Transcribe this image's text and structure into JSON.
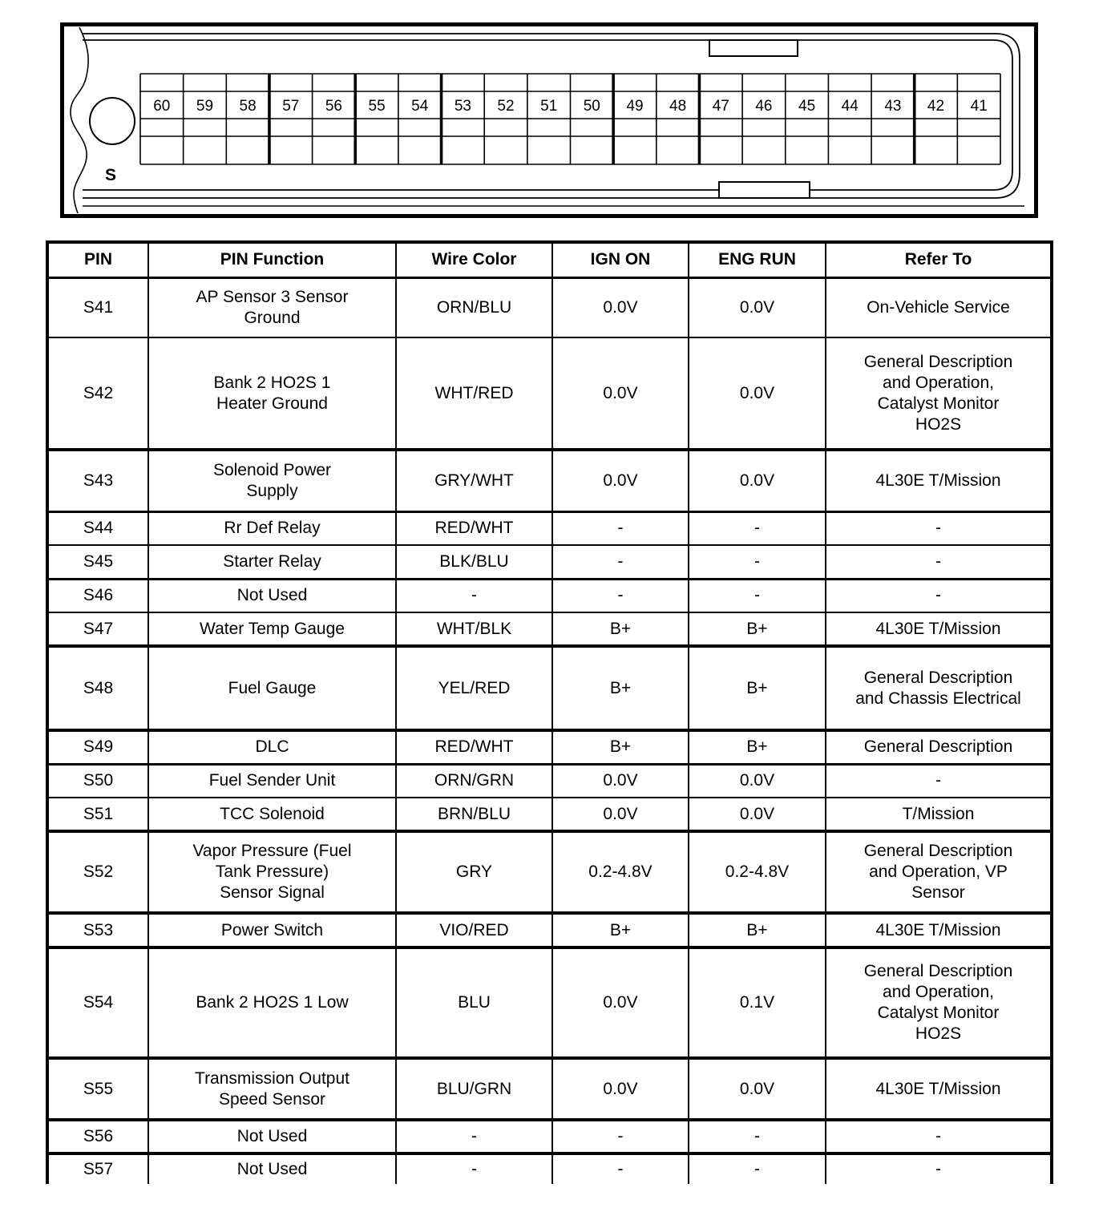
{
  "connector": {
    "label": "S",
    "pins": [
      "60",
      "59",
      "58",
      "57",
      "56",
      "55",
      "54",
      "53",
      "52",
      "51",
      "50",
      "49",
      "48",
      "47",
      "46",
      "45",
      "44",
      "43",
      "42",
      "41"
    ]
  },
  "table": {
    "headers": [
      "PIN",
      "PIN Function",
      "Wire Color",
      "IGN ON",
      "ENG RUN",
      "Refer To"
    ],
    "rows": [
      {
        "pin": "S41",
        "function": "AP Sensor 3 Sensor Ground",
        "wire_color": "ORN/BLU",
        "ign_on": "0.0V",
        "eng_run": "0.0V",
        "refer_to": "On-Vehicle Service"
      },
      {
        "pin": "S42",
        "function": "Bank 2 HO2S 1 Heater Ground",
        "wire_color": "WHT/RED",
        "ign_on": "0.0V",
        "eng_run": "0.0V",
        "refer_to": "General Description and Operation, Catalyst Monitor HO2S"
      },
      {
        "pin": "S43",
        "function": "Solenoid Power Supply",
        "wire_color": "GRY/WHT",
        "ign_on": "0.0V",
        "eng_run": "0.0V",
        "refer_to": "4L30E T/Mission"
      },
      {
        "pin": "S44",
        "function": "Rr Def Relay",
        "wire_color": "RED/WHT",
        "ign_on": "-",
        "eng_run": "-",
        "refer_to": "-"
      },
      {
        "pin": "S45",
        "function": "Starter Relay",
        "wire_color": "BLK/BLU",
        "ign_on": "-",
        "eng_run": "-",
        "refer_to": "-"
      },
      {
        "pin": "S46",
        "function": "Not Used",
        "wire_color": "-",
        "ign_on": "-",
        "eng_run": "-",
        "refer_to": "-"
      },
      {
        "pin": "S47",
        "function": "Water Temp Gauge",
        "wire_color": "WHT/BLK",
        "ign_on": "B+",
        "eng_run": "B+",
        "refer_to": "4L30E T/Mission"
      },
      {
        "pin": "S48",
        "function": "Fuel Gauge",
        "wire_color": "YEL/RED",
        "ign_on": "B+",
        "eng_run": "B+",
        "refer_to": "General Description and Chassis Electrical"
      },
      {
        "pin": "S49",
        "function": "DLC",
        "wire_color": "RED/WHT",
        "ign_on": "B+",
        "eng_run": "B+",
        "refer_to": "General Description"
      },
      {
        "pin": "S50",
        "function": "Fuel Sender Unit",
        "wire_color": "ORN/GRN",
        "ign_on": "0.0V",
        "eng_run": "0.0V",
        "refer_to": "-"
      },
      {
        "pin": "S51",
        "function": "TCC Solenoid",
        "wire_color": "BRN/BLU",
        "ign_on": "0.0V",
        "eng_run": "0.0V",
        "refer_to": "T/Mission"
      },
      {
        "pin": "S52",
        "function": "Vapor Pressure (Fuel Tank Pressure) Sensor Signal",
        "wire_color": "GRY",
        "ign_on": "0.2-4.8V",
        "eng_run": "0.2-4.8V",
        "refer_to": "General Description and Operation, VP Sensor"
      },
      {
        "pin": "S53",
        "function": "Power Switch",
        "wire_color": "VIO/RED",
        "ign_on": "B+",
        "eng_run": "B+",
        "refer_to": "4L30E T/Mission"
      },
      {
        "pin": "S54",
        "function": "Bank 2 HO2S 1 Low",
        "wire_color": "BLU",
        "ign_on": "0.0V",
        "eng_run": "0.1V",
        "refer_to": "General Description and Operation, Catalyst Monitor HO2S"
      },
      {
        "pin": "S55",
        "function": "Transmission Output Speed Sensor",
        "wire_color": "BLU/GRN",
        "ign_on": "0.0V",
        "eng_run": "0.0V",
        "refer_to": "4L30E T/Mission"
      },
      {
        "pin": "S56",
        "function": "Not Used",
        "wire_color": "-",
        "ign_on": "-",
        "eng_run": "-",
        "refer_to": "-"
      },
      {
        "pin": "S57",
        "function": "Not Used",
        "wire_color": "-",
        "ign_on": "-",
        "eng_run": "-",
        "refer_to": "-"
      }
    ]
  },
  "colors": {
    "ink": "#000000",
    "paper": "#ffffff"
  }
}
